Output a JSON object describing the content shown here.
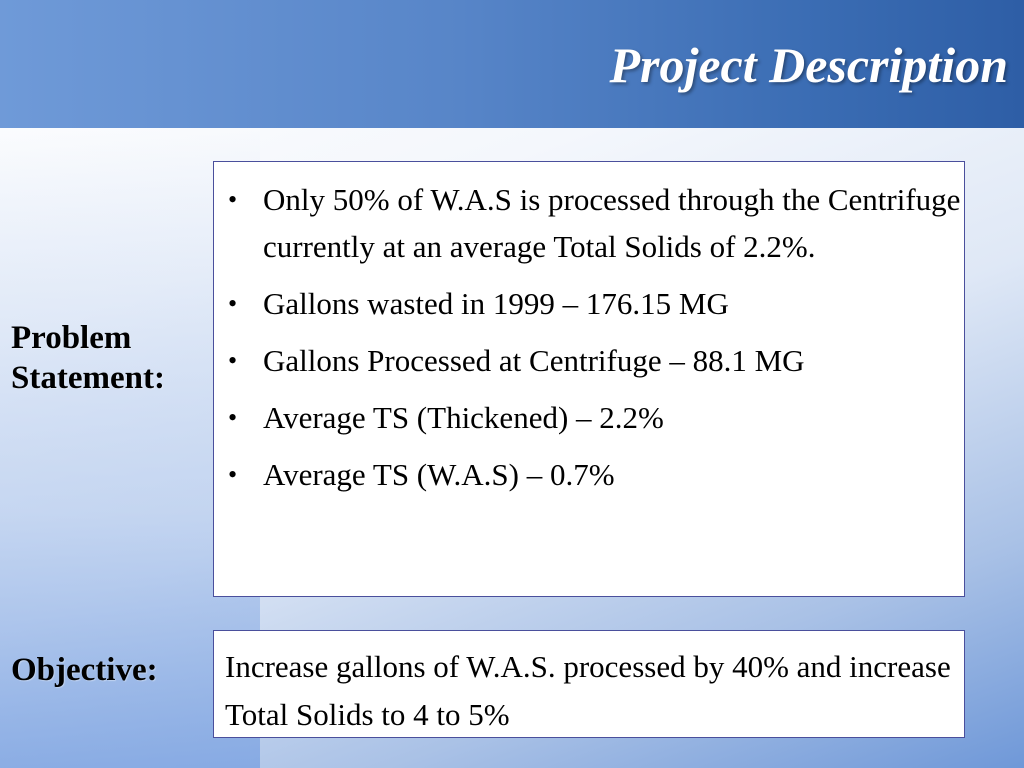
{
  "title": "Project Description",
  "problem": {
    "label_line1": "Problem",
    "label_line2": "Statement:",
    "bullets": [
      "Only 50% of W.A.S is processed through the Centrifuge currently at an average Total Solids of 2.2%.",
      "Gallons wasted in 1999 – 176.15 MG",
      "Gallons Processed at Centrifuge – 88.1 MG",
      "Average TS (Thickened) – 2.2%",
      "Average TS (W.A.S) – 0.7%"
    ]
  },
  "objective": {
    "label": "Objective:",
    "text": "Increase gallons of W.A.S. processed by 40% and increase Total Solids to 4 to 5%"
  },
  "colors": {
    "title_bar": "#4a7cc2",
    "box_border": "#4a4f9c"
  }
}
